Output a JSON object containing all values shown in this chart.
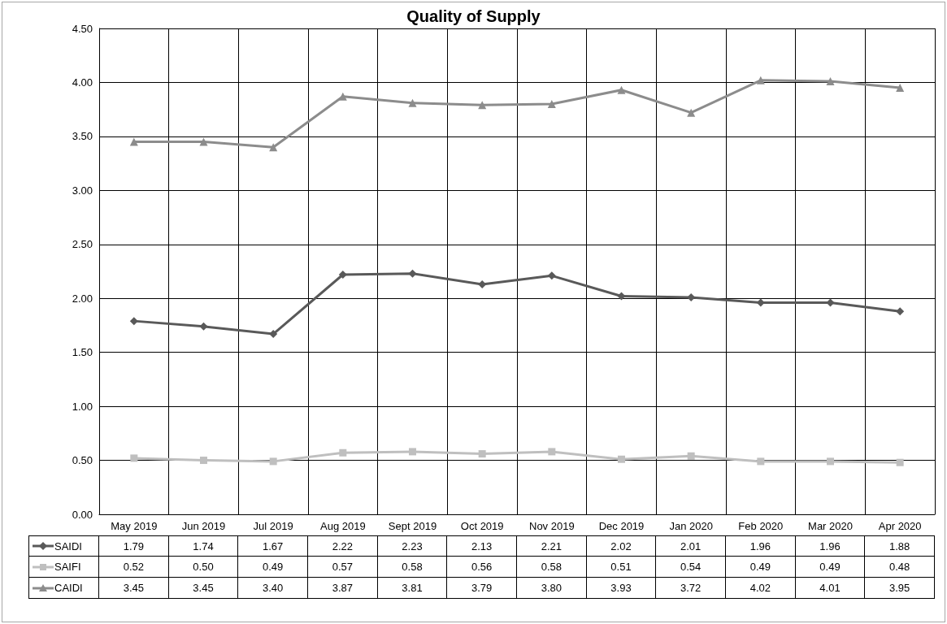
{
  "chart_data": {
    "type": "line",
    "title": "Quality of Supply",
    "categories": [
      "May 2019",
      "Jun 2019",
      "Jul 2019",
      "Aug 2019",
      "Sept 2019",
      "Oct 2019",
      "Nov 2019",
      "Dec 2019",
      "Jan 2020",
      "Feb 2020",
      "Mar 2020",
      "Apr 2020"
    ],
    "series": [
      {
        "name": "SAIDI",
        "color": "#595959",
        "marker": "diamond",
        "values": [
          1.79,
          1.74,
          1.67,
          2.22,
          2.23,
          2.13,
          2.21,
          2.02,
          2.01,
          1.96,
          1.96,
          1.88
        ],
        "value_labels": [
          "1.79",
          "1.74",
          "1.67",
          "2.22",
          "2.23",
          "2.13",
          "2.21",
          "2.02",
          "2.01",
          "1.96",
          "1.96",
          "1.88"
        ]
      },
      {
        "name": "SAIFI",
        "color": "#bfbfbf",
        "marker": "square",
        "values": [
          0.52,
          0.5,
          0.49,
          0.57,
          0.58,
          0.56,
          0.58,
          0.51,
          0.54,
          0.49,
          0.49,
          0.48
        ],
        "value_labels": [
          "0.52",
          "0.50",
          "0.49",
          "0.57",
          "0.58",
          "0.56",
          "0.58",
          "0.51",
          "0.54",
          "0.49",
          "0.49",
          "0.48"
        ]
      },
      {
        "name": "CAIDI",
        "color": "#8c8c8c",
        "marker": "triangle",
        "values": [
          3.45,
          3.45,
          3.4,
          3.87,
          3.81,
          3.79,
          3.8,
          3.93,
          3.72,
          4.02,
          4.01,
          3.95
        ],
        "value_labels": [
          "3.45",
          "3.45",
          "3.40",
          "3.87",
          "3.81",
          "3.79",
          "3.80",
          "3.93",
          "3.72",
          "4.02",
          "4.01",
          "3.95"
        ]
      }
    ],
    "ylim": [
      0,
      4.5
    ],
    "yticks": [
      {
        "value": 0,
        "label": "0.00"
      },
      {
        "value": 0.5,
        "label": "0.50"
      },
      {
        "value": 1,
        "label": "1.00"
      },
      {
        "value": 1.5,
        "label": "1.50"
      },
      {
        "value": 2,
        "label": "2.00"
      },
      {
        "value": 2.5,
        "label": "2.50"
      },
      {
        "value": 3,
        "label": "3.00"
      },
      {
        "value": 3.5,
        "label": "3.50"
      },
      {
        "value": 4,
        "label": "4.00"
      },
      {
        "value": 4.5,
        "label": "4.50"
      }
    ],
    "grid": true,
    "legend": "bottom",
    "line_style": "solid"
  }
}
